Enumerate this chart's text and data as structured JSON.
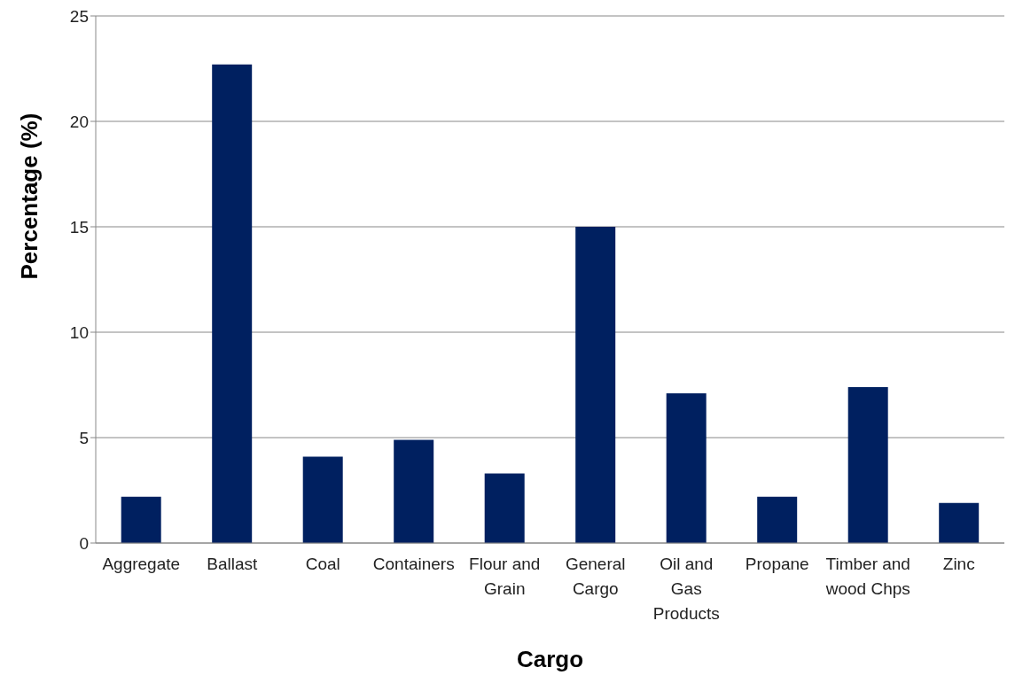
{
  "chart_data": {
    "type": "bar",
    "xlabel": "Cargo",
    "ylabel": "Percentage (%)",
    "categories": [
      "Aggregate",
      "Ballast",
      "Coal",
      "Containers",
      "Flour and Grain",
      "General Cargo",
      "Oil and Gas Products",
      "Propane",
      "Timber and wood Chps",
      "Zinc"
    ],
    "values": [
      2.2,
      22.7,
      4.1,
      4.9,
      3.3,
      15.0,
      7.1,
      2.2,
      7.4,
      1.9
    ],
    "color": "#002060",
    "ylim": [
      0,
      25
    ],
    "yticks": [
      0,
      5,
      10,
      15,
      20,
      25
    ],
    "grid": "y",
    "legend": false
  }
}
